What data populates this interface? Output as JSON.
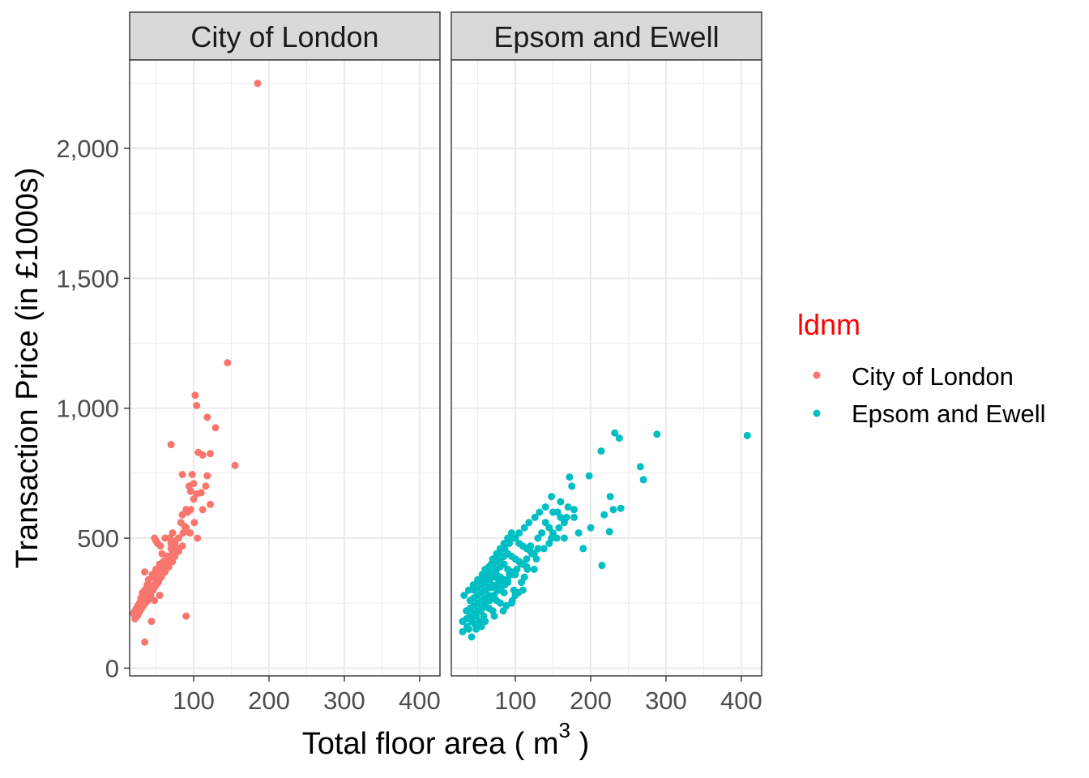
{
  "chart_data": {
    "type": "scatter",
    "facets": [
      "City of London",
      "Epsom and Ewell"
    ],
    "xlabel": "Total floor area ( m",
    "xlabel_superscript": "3",
    "xlabel_suffix": " )",
    "ylabel": "Transaction Price (in £1000s)",
    "xlim": [
      15,
      427
    ],
    "ylim": [
      -30,
      2340
    ],
    "x_ticks": [
      100,
      200,
      300,
      400
    ],
    "x_tick_labels": [
      "100",
      "200",
      "300",
      "400"
    ],
    "y_ticks": [
      0,
      500,
      1000,
      1500,
      2000
    ],
    "y_tick_labels": [
      "0",
      "500",
      "1,000",
      "1,500",
      "2,000"
    ],
    "grid": true,
    "legend": {
      "title": "ldnm",
      "title_color": "#FF0000",
      "placement": "right",
      "entries": [
        "City of London",
        "Epsom and Ewell"
      ]
    },
    "series": [
      {
        "name": "City of London",
        "color": "#F8766D",
        "x": [
          185,
          145,
          102,
          118,
          104,
          129,
          122,
          155,
          70,
          106,
          112,
          98,
          85,
          100,
          118,
          94,
          96,
          104,
          116,
          110,
          100,
          96,
          122,
          90,
          83,
          92,
          85,
          112,
          101,
          95,
          90,
          86,
          80,
          75,
          70,
          65,
          60,
          55,
          50,
          45,
          40,
          38,
          35,
          32,
          30,
          28,
          26,
          24,
          22,
          20,
          40,
          48,
          52,
          58,
          62,
          68,
          72,
          78,
          45,
          50,
          55,
          60,
          65,
          35,
          42,
          47,
          53,
          57,
          62,
          67,
          72,
          33,
          38,
          42,
          46,
          50,
          54,
          58,
          63,
          30,
          34,
          37,
          41,
          44,
          48,
          27,
          31,
          36,
          39,
          43,
          46,
          25,
          29,
          33,
          37,
          41,
          22,
          26,
          30,
          34,
          38,
          42,
          46,
          50,
          55,
          60,
          65,
          70,
          75,
          80,
          85,
          35,
          90,
          105,
          95,
          48,
          50,
          35,
          52,
          56,
          62,
          44,
          75,
          80,
          70,
          58,
          64,
          48,
          55,
          68,
          72,
          88
        ],
        "y": [
          2250,
          1175,
          1050,
          965,
          1010,
          925,
          825,
          780,
          860,
          830,
          820,
          745,
          745,
          710,
          740,
          700,
          680,
          670,
          700,
          675,
          650,
          610,
          630,
          610,
          560,
          600,
          590,
          610,
          560,
          520,
          540,
          520,
          500,
          480,
          460,
          430,
          410,
          400,
          380,
          350,
          340,
          320,
          300,
          290,
          270,
          250,
          240,
          230,
          220,
          210,
          310,
          320,
          350,
          380,
          400,
          420,
          440,
          460,
          360,
          370,
          390,
          410,
          430,
          280,
          300,
          320,
          330,
          350,
          370,
          390,
          410,
          250,
          270,
          290,
          300,
          320,
          340,
          360,
          380,
          230,
          250,
          270,
          280,
          300,
          310,
          210,
          230,
          250,
          260,
          280,
          300,
          200,
          220,
          240,
          260,
          270,
          190,
          210,
          230,
          250,
          270,
          290,
          310,
          330,
          350,
          370,
          390,
          410,
          430,
          450,
          470,
          100,
          200,
          500,
          520,
          500,
          490,
          370,
          480,
          470,
          500,
          180,
          490,
          500,
          480,
          440,
          420,
          260,
          280,
          500,
          520,
          545
        ]
      },
      {
        "name": "Epsom and Ewell",
        "color": "#00BFC4",
        "x": [
          408,
          288,
          232,
          238,
          214,
          266,
          270,
          198,
          226,
          240,
          230,
          218,
          172,
          175,
          160,
          156,
          148,
          140,
          132,
          126,
          118,
          112,
          105,
          98,
          92,
          86,
          80,
          74,
          68,
          62,
          56,
          50,
          44,
          38,
          32,
          215,
          225,
          190,
          200,
          178,
          184,
          150,
          165,
          145,
          130,
          122,
          115,
          108,
          102,
          96,
          90,
          84,
          78,
          72,
          66,
          60,
          54,
          48,
          42,
          36,
          30,
          70,
          75,
          80,
          85,
          90,
          95,
          100,
          105,
          110,
          115,
          120,
          125,
          60,
          65,
          70,
          75,
          80,
          85,
          90,
          95,
          100,
          105,
          110,
          50,
          55,
          60,
          65,
          70,
          75,
          80,
          85,
          90,
          95,
          100,
          45,
          50,
          55,
          60,
          65,
          70,
          75,
          80,
          85,
          90,
          40,
          45,
          50,
          55,
          60,
          65,
          70,
          75,
          80,
          85,
          35,
          40,
          45,
          50,
          55,
          60,
          65,
          70,
          75,
          80,
          30,
          35,
          40,
          45,
          50,
          55,
          60,
          65,
          70,
          140,
          150,
          160,
          170,
          135,
          145,
          155,
          165,
          120,
          130,
          125,
          110,
          100,
          108,
          112,
          96,
          88,
          72,
          84,
          95,
          60,
          55,
          48,
          42,
          68,
          78,
          58,
          52,
          46,
          38,
          105,
          115,
          92,
          82,
          76,
          66,
          56,
          62,
          74,
          86,
          98,
          104,
          116,
          128,
          138,
          148,
          158,
          168,
          178
        ],
        "y": [
          895,
          900,
          905,
          885,
          835,
          775,
          725,
          740,
          660,
          615,
          610,
          590,
          735,
          700,
          640,
          600,
          660,
          620,
          600,
          580,
          560,
          540,
          520,
          500,
          480,
          460,
          440,
          420,
          400,
          380,
          360,
          340,
          320,
          300,
          280,
          395,
          525,
          460,
          540,
          580,
          520,
          520,
          500,
          480,
          460,
          440,
          420,
          400,
          380,
          360,
          340,
          320,
          300,
          280,
          260,
          240,
          220,
          200,
          180,
          160,
          140,
          420,
          440,
          460,
          480,
          500,
          520,
          500,
          480,
          470,
          460,
          450,
          440,
          380,
          390,
          400,
          410,
          420,
          430,
          440,
          430,
          420,
          410,
          400,
          330,
          340,
          350,
          360,
          370,
          380,
          390,
          400,
          380,
          370,
          360,
          300,
          310,
          320,
          330,
          340,
          350,
          360,
          350,
          340,
          330,
          260,
          270,
          280,
          290,
          300,
          310,
          320,
          310,
          300,
          290,
          220,
          230,
          240,
          250,
          260,
          270,
          280,
          270,
          260,
          250,
          180,
          190,
          200,
          210,
          220,
          230,
          240,
          230,
          220,
          560,
          600,
          580,
          620,
          520,
          540,
          500,
          560,
          470,
          500,
          380,
          300,
          280,
          330,
          350,
          260,
          240,
          200,
          220,
          250,
          180,
          160,
          150,
          120,
          310,
          330,
          200,
          180,
          170,
          150,
          410,
          390,
          360,
          340,
          300,
          270,
          230,
          260,
          350,
          320,
          300,
          290,
          380,
          420,
          460,
          500,
          540,
          580,
          610
        ]
      }
    ]
  }
}
